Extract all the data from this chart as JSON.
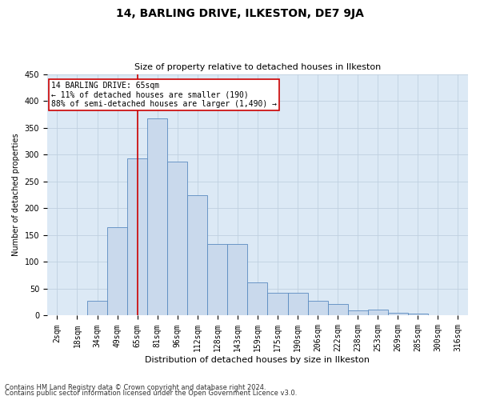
{
  "title": "14, BARLING DRIVE, ILKESTON, DE7 9JA",
  "subtitle": "Size of property relative to detached houses in Ilkeston",
  "xlabel": "Distribution of detached houses by size in Ilkeston",
  "ylabel": "Number of detached properties",
  "footnote1": "Contains HM Land Registry data © Crown copyright and database right 2024.",
  "footnote2": "Contains public sector information licensed under the Open Government Licence v3.0.",
  "annotation_title": "14 BARLING DRIVE: 65sqm",
  "annotation_line1": "← 11% of detached houses are smaller (190)",
  "annotation_line2": "88% of semi-detached houses are larger (1,490) →",
  "bar_color": "#c9d9ec",
  "bar_edge_color": "#5a8bbf",
  "vline_color": "#cc0000",
  "vline_x": 4,
  "annotation_box_color": "#ffffff",
  "annotation_box_edge": "#cc0000",
  "grid_color": "#c0d0e0",
  "bg_color": "#dce9f5",
  "categories": [
    "2sqm",
    "18sqm",
    "34sqm",
    "49sqm",
    "65sqm",
    "81sqm",
    "96sqm",
    "112sqm",
    "128sqm",
    "143sqm",
    "159sqm",
    "175sqm",
    "190sqm",
    "206sqm",
    "222sqm",
    "238sqm",
    "253sqm",
    "269sqm",
    "285sqm",
    "300sqm",
    "316sqm"
  ],
  "values": [
    0,
    1,
    28,
    165,
    293,
    367,
    287,
    225,
    133,
    133,
    62,
    42,
    42,
    28,
    22,
    10,
    11,
    5,
    3,
    1,
    0
  ],
  "ylim": [
    0,
    450
  ],
  "yticks": [
    0,
    50,
    100,
    150,
    200,
    250,
    300,
    350,
    400,
    450
  ],
  "title_fontsize": 10,
  "subtitle_fontsize": 8,
  "xlabel_fontsize": 8,
  "ylabel_fontsize": 7,
  "tick_fontsize": 7,
  "annot_fontsize": 7,
  "footnote_fontsize": 6
}
